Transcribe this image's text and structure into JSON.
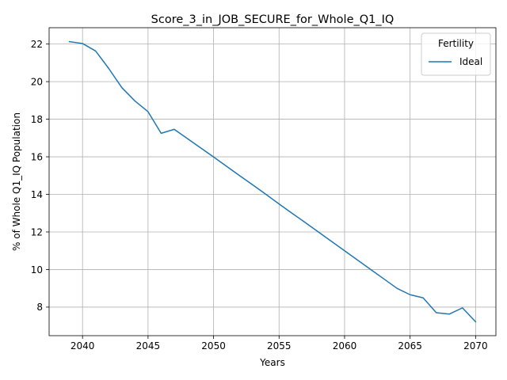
{
  "chart_data": {
    "type": "line",
    "title": "Score_3_in_JOB_SECURE_for_Whole_Q1_IQ",
    "xlabel": "Years",
    "ylabel": "% of Whole Q1_IQ Population",
    "xlim": [
      2037.45,
      2071.55
    ],
    "ylim": [
      6.48,
      22.87
    ],
    "xticks": [
      2040,
      2045,
      2050,
      2055,
      2060,
      2065,
      2070
    ],
    "yticks": [
      8,
      10,
      12,
      14,
      16,
      18,
      20,
      22
    ],
    "grid": true,
    "legend": {
      "title": "Fertility",
      "placement": "top-right"
    },
    "series": [
      {
        "name": "Ideal",
        "color": "#1f77b4",
        "x": [
          2039,
          2040,
          2041,
          2042,
          2043,
          2044,
          2045,
          2046,
          2047,
          2048,
          2049,
          2050,
          2051,
          2052,
          2053,
          2054,
          2055,
          2056,
          2057,
          2058,
          2059,
          2060,
          2061,
          2062,
          2063,
          2064,
          2065,
          2066,
          2067,
          2068,
          2069,
          2070
        ],
        "y": [
          22.13,
          22.03,
          21.63,
          20.7,
          19.68,
          18.97,
          18.4,
          17.25,
          17.46,
          16.97,
          16.48,
          15.99,
          15.49,
          14.99,
          14.5,
          14.0,
          13.49,
          12.99,
          12.5,
          12.0,
          11.5,
          11.0,
          10.5,
          10.0,
          9.5,
          9.0,
          8.66,
          8.49,
          7.7,
          7.63,
          7.96,
          7.22
        ]
      }
    ]
  }
}
